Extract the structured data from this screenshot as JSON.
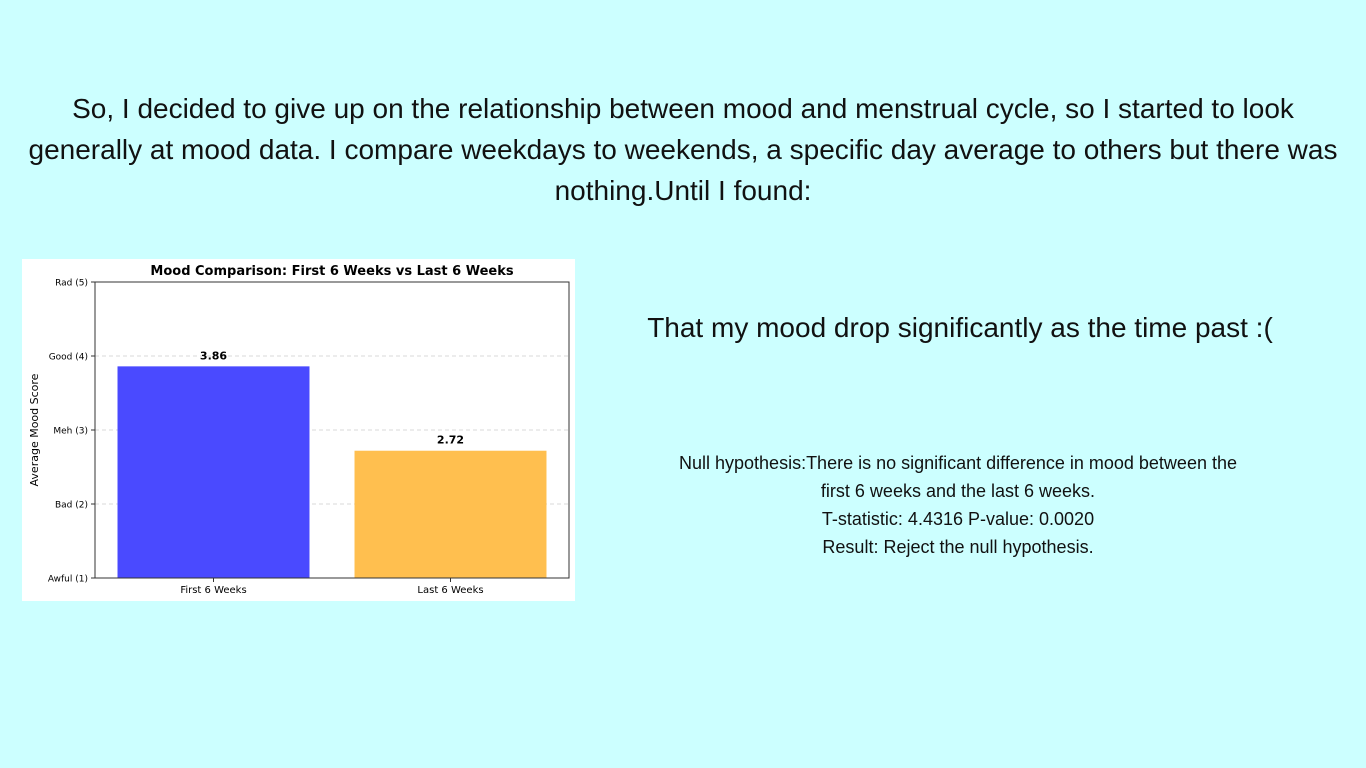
{
  "slide": {
    "intro_lines": [
      "So, I decided to give up on the relationship between mood and menstrual  cycle, so I started to look",
      "generally at mood data. I compare weekdays to weekends, a specific day average to others but there was",
      "nothing.Until I found:"
    ],
    "headline": "That my mood drop significantly as the time past :(",
    "stats": {
      "null_hypothesis_line1": "Null hypothesis:There is no significant difference in mood between the",
      "null_hypothesis_line2": "first 6 weeks and the last 6 weeks.",
      "test_line": "T-statistic: 4.4316 P-value: 0.0020",
      "result_line": "Result: Reject the null hypothesis."
    }
  },
  "chart_data": {
    "type": "bar",
    "title": "Mood Comparison: First 6 Weeks vs Last 6 Weeks",
    "xlabel": "",
    "ylabel": "Average Mood Score",
    "categories": [
      "First 6 Weeks",
      "Last 6 Weeks"
    ],
    "values": [
      3.86,
      2.72
    ],
    "value_labels": [
      "3.86",
      "2.72"
    ],
    "bar_colors": [
      "#4a4aff",
      "#ffbf4f"
    ],
    "ylim": [
      1,
      5
    ],
    "yticks": [
      1,
      2,
      3,
      4,
      5
    ],
    "ytick_labels": [
      "Awful (1)",
      "Bad (2)",
      "Meh (3)",
      "Good (4)",
      "Rad (5)"
    ],
    "grid": "horizontal dashed",
    "legend": "none"
  }
}
